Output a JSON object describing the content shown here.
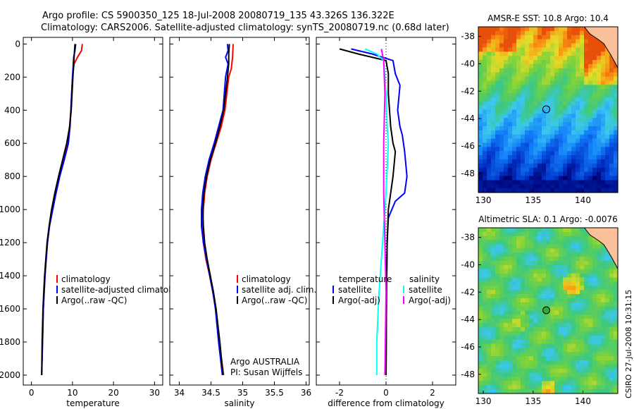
{
  "title": {
    "line1": "Argo profile: CS 5900350_125 18-Jul-2008 20080719_135 43.326S 136.322E",
    "line2": "Climatology: CARS2006. Satellite-adjusted climatology: synTS_20080719.nc (0.68d later)"
  },
  "side_label": "CSIRO 27-Jul-2008 10:31:15",
  "chart_data": [
    {
      "id": "temperature",
      "type": "line",
      "xlabel": "temperature",
      "xticks": [
        0,
        10,
        20,
        30
      ],
      "xlim": [
        -2,
        32
      ],
      "yticks": [
        0,
        200,
        400,
        600,
        800,
        1000,
        1200,
        1400,
        1600,
        1800,
        2000
      ],
      "ylim": [
        2060,
        -40
      ],
      "legend": [
        "climatology",
        "satellite-adjusted climatology",
        "Argo(..raw -QC)"
      ],
      "series": [
        {
          "name": "climatology",
          "color": "#ff0000",
          "points": [
            [
              12.4,
              0
            ],
            [
              12.2,
              40
            ],
            [
              11.2,
              80
            ],
            [
              10.4,
              120
            ],
            [
              10.0,
              200
            ],
            [
              9.8,
              300
            ],
            [
              9.6,
              400
            ],
            [
              9.3,
              500
            ],
            [
              8.8,
              600
            ],
            [
              7.8,
              700
            ],
            [
              6.8,
              800
            ],
            [
              5.8,
              900
            ],
            [
              5.0,
              1000
            ],
            [
              4.4,
              1100
            ],
            [
              3.9,
              1200
            ],
            [
              3.6,
              1300
            ],
            [
              3.3,
              1400
            ],
            [
              3.1,
              1500
            ],
            [
              2.9,
              1600
            ],
            [
              2.7,
              1800
            ],
            [
              2.5,
              2000
            ]
          ]
        },
        {
          "name": "satellite-adjusted climatology",
          "color": "#0000ff",
          "points": [
            [
              10.8,
              0
            ],
            [
              10.6,
              40
            ],
            [
              10.3,
              80
            ],
            [
              10.2,
              120
            ],
            [
              10.0,
              200
            ],
            [
              9.8,
              300
            ],
            [
              9.6,
              400
            ],
            [
              9.4,
              500
            ],
            [
              9.0,
              600
            ],
            [
              8.0,
              700
            ],
            [
              6.9,
              800
            ],
            [
              6.0,
              900
            ],
            [
              5.2,
              1000
            ],
            [
              4.4,
              1100
            ],
            [
              3.9,
              1200
            ],
            [
              3.6,
              1300
            ],
            [
              3.3,
              1400
            ],
            [
              3.1,
              1500
            ],
            [
              2.9,
              1600
            ],
            [
              2.7,
              1800
            ],
            [
              2.5,
              2000
            ]
          ]
        },
        {
          "name": "Argo(..raw -QC)",
          "color": "#000000",
          "points": [
            [
              10.6,
              0
            ],
            [
              10.5,
              40
            ],
            [
              10.4,
              80
            ],
            [
              10.3,
              120
            ],
            [
              10.1,
              200
            ],
            [
              9.9,
              300
            ],
            [
              9.7,
              400
            ],
            [
              9.3,
              500
            ],
            [
              8.6,
              600
            ],
            [
              7.6,
              700
            ],
            [
              6.6,
              800
            ],
            [
              5.7,
              900
            ],
            [
              4.9,
              1000
            ],
            [
              4.3,
              1100
            ],
            [
              3.8,
              1200
            ],
            [
              3.5,
              1300
            ],
            [
              3.2,
              1400
            ],
            [
              3.0,
              1500
            ],
            [
              2.8,
              1600
            ],
            [
              2.6,
              1800
            ],
            [
              2.5,
              2000
            ]
          ]
        }
      ]
    },
    {
      "id": "salinity",
      "type": "line",
      "xlabel": "salinity",
      "xticks": [
        34,
        34.5,
        35,
        35.5,
        36
      ],
      "xlim": [
        33.85,
        36.05
      ],
      "yticks": [
        0,
        200,
        400,
        600,
        800,
        1000,
        1200,
        1400,
        1600,
        1800,
        2000
      ],
      "ylim": [
        2060,
        -40
      ],
      "legend": [
        "climatology",
        "satellite adj. clim.",
        "Argo(..raw -QC)"
      ],
      "annotation": [
        "Argo AUSTRALIA",
        "PI: Susan Wijffels"
      ],
      "series": [
        {
          "name": "climatology",
          "color": "#ff0000",
          "points": [
            [
              34.85,
              0
            ],
            [
              34.84,
              80
            ],
            [
              34.82,
              150
            ],
            [
              34.78,
              200
            ],
            [
              34.75,
              300
            ],
            [
              34.72,
              400
            ],
            [
              34.66,
              500
            ],
            [
              34.58,
              600
            ],
            [
              34.5,
              700
            ],
            [
              34.44,
              800
            ],
            [
              34.4,
              900
            ],
            [
              34.38,
              1000
            ],
            [
              34.37,
              1100
            ],
            [
              34.38,
              1200
            ],
            [
              34.42,
              1300
            ],
            [
              34.48,
              1400
            ],
            [
              34.53,
              1500
            ],
            [
              34.58,
              1600
            ],
            [
              34.63,
              1800
            ],
            [
              34.7,
              2000
            ]
          ]
        },
        {
          "name": "satellite adj. clim.",
          "color": "#0000ff",
          "points": [
            [
              34.76,
              0
            ],
            [
              34.77,
              40
            ],
            [
              34.73,
              80
            ],
            [
              34.77,
              120
            ],
            [
              34.73,
              200
            ],
            [
              34.71,
              300
            ],
            [
              34.69,
              400
            ],
            [
              34.62,
              500
            ],
            [
              34.55,
              600
            ],
            [
              34.47,
              700
            ],
            [
              34.41,
              800
            ],
            [
              34.37,
              900
            ],
            [
              34.35,
              1000
            ],
            [
              34.35,
              1100
            ],
            [
              34.38,
              1200
            ],
            [
              34.43,
              1300
            ],
            [
              34.48,
              1400
            ],
            [
              34.53,
              1500
            ],
            [
              34.57,
              1600
            ],
            [
              34.62,
              1800
            ],
            [
              34.68,
              2000
            ]
          ]
        },
        {
          "name": "Argo(..raw -QC)",
          "color": "#000000",
          "points": [
            [
              34.79,
              0
            ],
            [
              34.78,
              60
            ],
            [
              34.78,
              120
            ],
            [
              34.76,
              200
            ],
            [
              34.73,
              300
            ],
            [
              34.7,
              400
            ],
            [
              34.64,
              500
            ],
            [
              34.57,
              600
            ],
            [
              34.49,
              700
            ],
            [
              34.43,
              800
            ],
            [
              34.39,
              900
            ],
            [
              34.37,
              1000
            ],
            [
              34.38,
              1100
            ],
            [
              34.4,
              1200
            ],
            [
              34.44,
              1300
            ],
            [
              34.49,
              1400
            ],
            [
              34.54,
              1500
            ],
            [
              34.58,
              1600
            ],
            [
              34.64,
              1800
            ],
            [
              34.69,
              2000
            ]
          ]
        }
      ]
    },
    {
      "id": "difference",
      "type": "line",
      "xlabel": "difference from climatology",
      "xticks": [
        -2,
        0,
        2
      ],
      "xlim": [
        -3,
        3
      ],
      "yticks": [
        0,
        200,
        400,
        600,
        800,
        1000,
        1200,
        1400,
        1600,
        1800,
        2000
      ],
      "ylim": [
        2060,
        -40
      ],
      "legend_left": {
        "title": "temperature",
        "entries": [
          "satellite",
          "Argo(-adj)"
        ]
      },
      "legend_right": {
        "title": "salinity",
        "entries": [
          "satellite",
          "Argo(-adj)"
        ]
      },
      "series": [
        {
          "name": "satellite",
          "group": "temperature",
          "color": "#0000ff",
          "points": [
            [
              -1.5,
              30
            ],
            [
              -0.6,
              60
            ],
            [
              0.3,
              100
            ],
            [
              0.4,
              180
            ],
            [
              0.6,
              250
            ],
            [
              0.5,
              400
            ],
            [
              0.6,
              500
            ],
            [
              0.7,
              550
            ],
            [
              0.8,
              650
            ],
            [
              0.9,
              800
            ],
            [
              0.8,
              900
            ],
            [
              0.4,
              950
            ],
            [
              0.1,
              1050
            ],
            [
              0.05,
              1200
            ],
            [
              0.02,
              1500
            ],
            [
              0.0,
              2000
            ]
          ]
        },
        {
          "name": "Argo(-adj)",
          "group": "temperature",
          "color": "#000000",
          "points": [
            [
              -2.0,
              30
            ],
            [
              -1.2,
              60
            ],
            [
              0.0,
              100
            ],
            [
              0.1,
              180
            ],
            [
              0.1,
              300
            ],
            [
              0.2,
              500
            ],
            [
              0.3,
              600
            ],
            [
              0.4,
              650
            ],
            [
              0.3,
              800
            ],
            [
              0.1,
              1000
            ],
            [
              0.05,
              1200
            ],
            [
              0.02,
              1500
            ],
            [
              0.0,
              2000
            ]
          ]
        },
        {
          "name": "satellite",
          "group": "salinity",
          "color": "#00ffff",
          "points": [
            [
              -0.9,
              30
            ],
            [
              -0.4,
              60
            ],
            [
              -0.1,
              100
            ],
            [
              0.0,
              300
            ],
            [
              0.05,
              500
            ],
            [
              0.1,
              600
            ],
            [
              0.0,
              900
            ],
            [
              -0.1,
              1100
            ],
            [
              -0.2,
              1300
            ],
            [
              -0.3,
              1500
            ],
            [
              -0.4,
              1800
            ],
            [
              -0.4,
              2000
            ]
          ]
        },
        {
          "name": "Argo(-adj)",
          "group": "salinity",
          "color": "#ff00ff",
          "points": [
            [
              -0.2,
              30
            ],
            [
              -0.1,
              100
            ],
            [
              -0.05,
              300
            ],
            [
              -0.1,
              600
            ],
            [
              -0.1,
              900
            ],
            [
              -0.05,
              1200
            ],
            [
              0.0,
              1500
            ],
            [
              -0.05,
              2000
            ]
          ]
        }
      ]
    },
    {
      "id": "sst_map",
      "type": "heatmap",
      "title": "AMSR-E SST: 10.8 Argo: 10.4",
      "xticks": [
        130,
        135,
        140
      ],
      "xlim": [
        129.5,
        143.5
      ],
      "yticks": [
        -38,
        -40,
        -42,
        -44,
        -46,
        -48
      ],
      "ylim": [
        -49.4,
        -37.3
      ],
      "marker": {
        "lon": 136.322,
        "lat": -43.326,
        "fill": "none"
      }
    },
    {
      "id": "sla_map",
      "type": "heatmap",
      "title": "Altimetric SLA: 0.1 Argo: -0.0076",
      "xticks": [
        130,
        135,
        140
      ],
      "xlim": [
        129.5,
        143.5
      ],
      "yticks": [
        -38,
        -40,
        -42,
        -44,
        -46,
        -48
      ],
      "ylim": [
        -49.4,
        -37.3
      ],
      "marker": {
        "lon": 136.322,
        "lat": -43.326,
        "fill": "#33aa33"
      }
    }
  ]
}
